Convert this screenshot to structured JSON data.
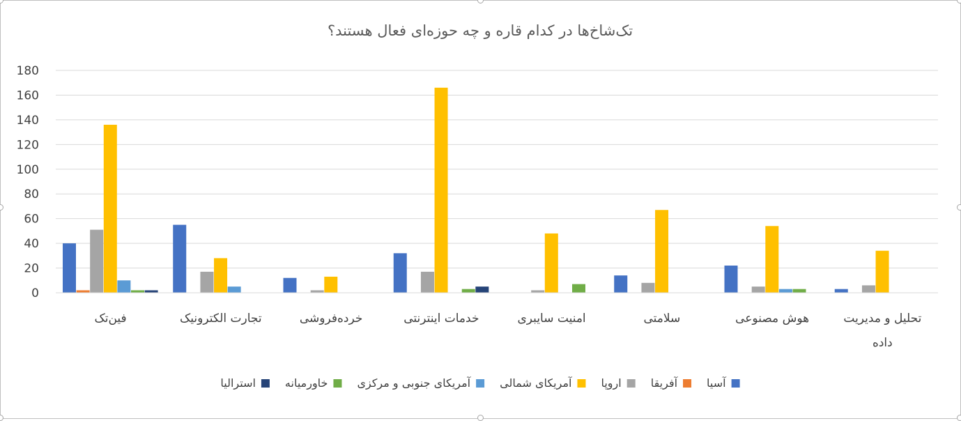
{
  "chart_data": {
    "type": "bar",
    "title": "تک‌شاخ‌ها در کدام قاره و چه حوزه‌ای فعال هستند؟",
    "categories": [
      [
        "فین‌تک"
      ],
      [
        "تجارت الکترونیک"
      ],
      [
        "خرده‌فروشی"
      ],
      [
        "خدمات اینترنتی"
      ],
      [
        "امنیت سایبری"
      ],
      [
        "سلامتی"
      ],
      [
        "هوش مصنوعی"
      ],
      [
        "تحلیل و مدیریت",
        "داده"
      ]
    ],
    "series": [
      {
        "name": "آسیا",
        "color": "#4472c4",
        "values": [
          40,
          55,
          12,
          32,
          0,
          14,
          22,
          3
        ]
      },
      {
        "name": "آفریقا",
        "color": "#ed7d31",
        "values": [
          2,
          0,
          0,
          0,
          0,
          0,
          0,
          0
        ]
      },
      {
        "name": "اروپا",
        "color": "#a5a5a5",
        "values": [
          51,
          17,
          2,
          17,
          2,
          8,
          5,
          6
        ]
      },
      {
        "name": "آمریکای شمالی",
        "color": "#ffc000",
        "values": [
          136,
          28,
          13,
          166,
          48,
          67,
          54,
          34
        ]
      },
      {
        "name": "آمریکای جنوبی و مرکزی",
        "color": "#5b9bd5",
        "values": [
          10,
          5,
          0,
          0,
          0,
          0,
          3,
          0
        ]
      },
      {
        "name": "خاورمیانه",
        "color": "#70ad47",
        "values": [
          2,
          0,
          0,
          3,
          7,
          0,
          3,
          0
        ]
      },
      {
        "name": "استرالیا",
        "color": "#264478",
        "values": [
          2,
          0,
          0,
          5,
          0,
          0,
          0,
          0
        ]
      }
    ],
    "ylim": [
      0,
      180
    ],
    "yticks": [
      0,
      20,
      40,
      60,
      80,
      100,
      120,
      140,
      160,
      180
    ],
    "grid": true,
    "legend_position": "bottom"
  }
}
